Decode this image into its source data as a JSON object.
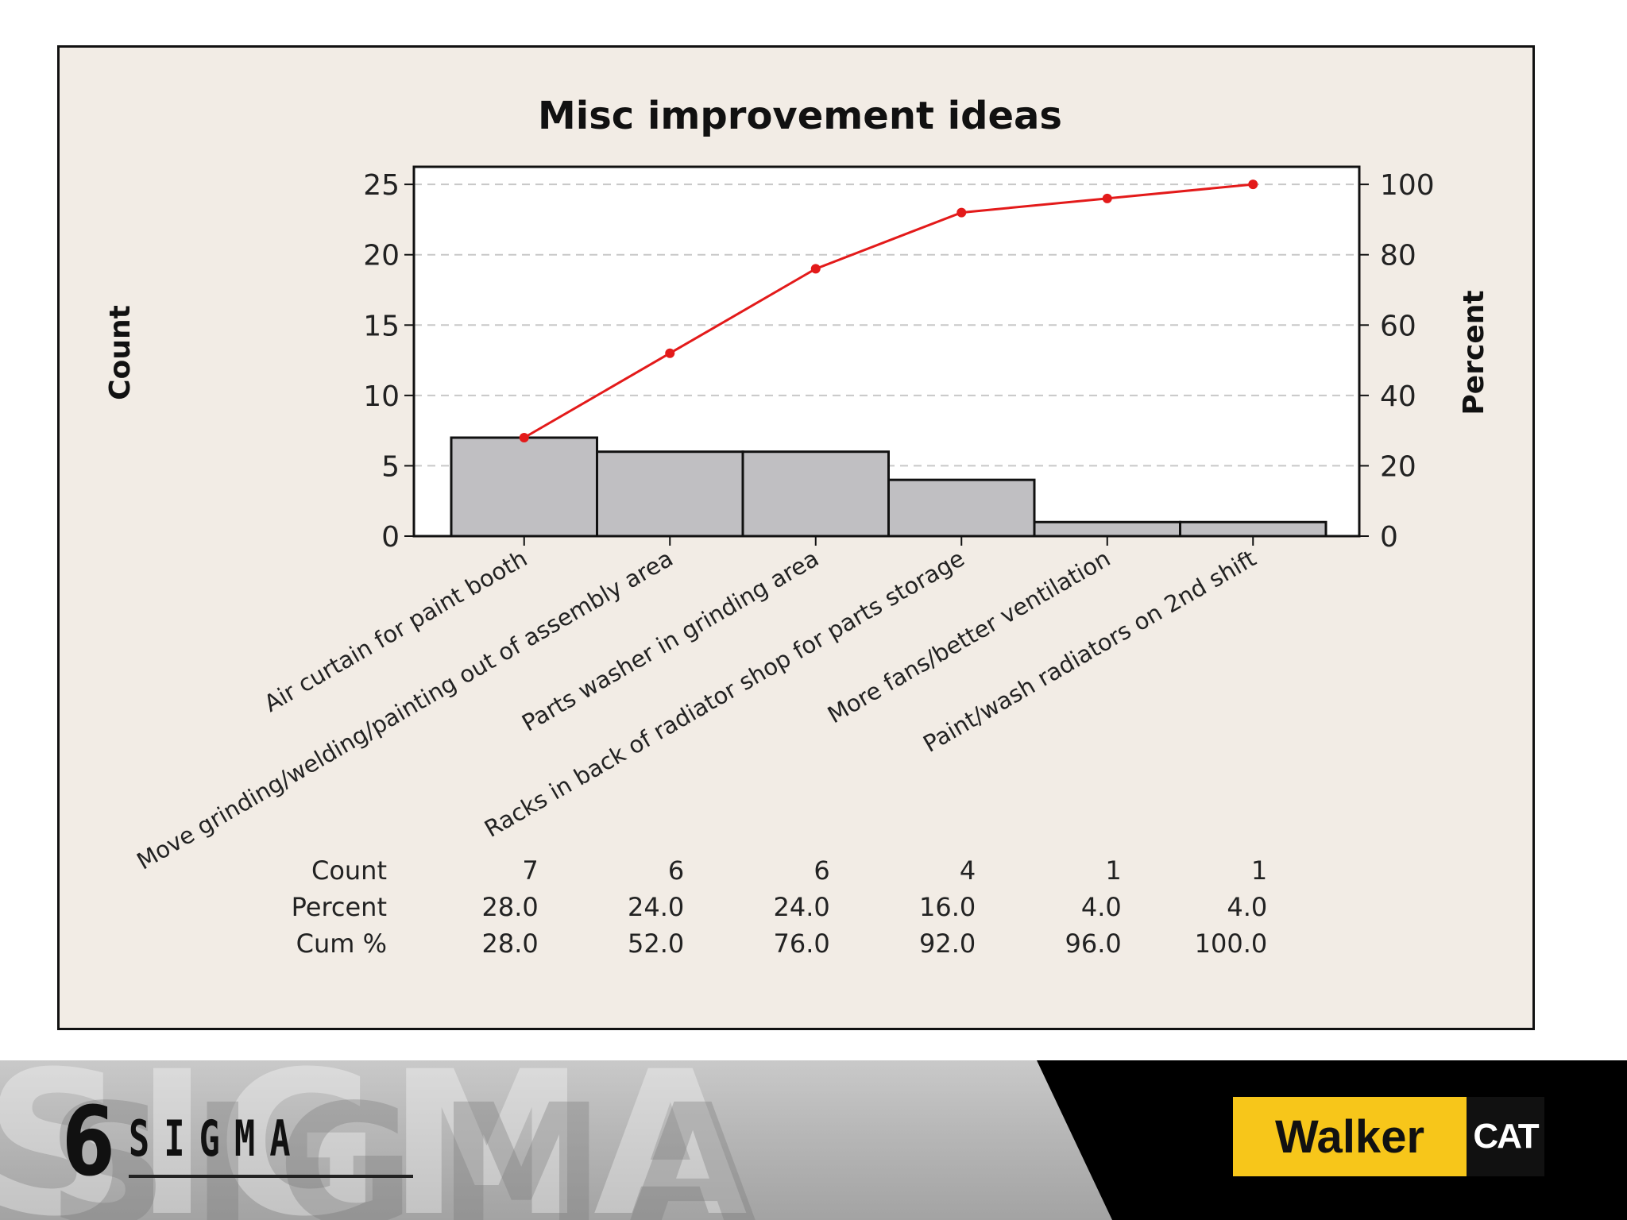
{
  "chart_data": {
    "type": "bar",
    "title": "Misc improvement ideas",
    "ylabel": "Count",
    "y2label": "Percent",
    "ylim": [
      0,
      26.25
    ],
    "yticks": [
      0,
      5,
      10,
      15,
      20,
      25
    ],
    "y2lim": [
      0,
      105
    ],
    "y2ticks": [
      0,
      20,
      40,
      60,
      80,
      100
    ],
    "grid": true,
    "categories": [
      "Air curtain for paint booth",
      "Move grinding/welding/painting out of assembly area",
      "Parts washer in grinding area",
      "Racks in back of radiator shop for parts storage",
      "More fans/better ventilation",
      "Paint/wash radiators on 2nd shift"
    ],
    "series": [
      {
        "type": "bar",
        "values": [
          7,
          6,
          6,
          4,
          1,
          1
        ]
      },
      {
        "type": "line",
        "axis": "right",
        "values": [
          28,
          52,
          76,
          92,
          96,
          100
        ]
      }
    ],
    "table": {
      "row_labels": [
        "Count",
        "Percent",
        "Cum %"
      ],
      "rows": [
        [
          "7",
          "6",
          "6",
          "4",
          "1",
          "1"
        ],
        [
          "28.0",
          "24.0",
          "24.0",
          "16.0",
          "4.0",
          "4.0"
        ],
        [
          "28.0",
          "52.0",
          "76.0",
          "92.0",
          "96.0",
          "100.0"
        ]
      ]
    },
    "colors": {
      "bar": "#c0bfc2",
      "line": "#e31a1a",
      "frame_bg": "#f2ece5",
      "plot_bg": "#ffffff"
    }
  },
  "banner": {
    "watermark": "SIGMA",
    "sigma_number": "6",
    "sigma_word": "SIGMA",
    "walker": "Walker",
    "cat": "CAT",
    "colors": {
      "walker_bg": "#f7c61a",
      "cat_bg": "#111111"
    }
  }
}
